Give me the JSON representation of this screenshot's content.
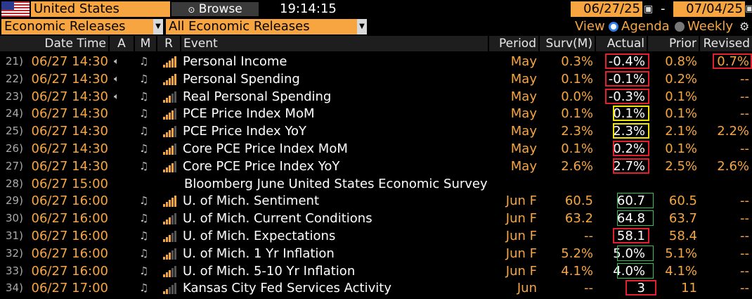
{
  "toolbar": {
    "country": "United States",
    "browse_label": "Browse",
    "time": "19:14:15",
    "date_from": "06/27/25",
    "date_to": "07/04/25",
    "date_sep": "-"
  },
  "filters": {
    "category": "Economic Releases",
    "subcategory": "All Economic Releases",
    "view_label": "View",
    "agenda_label": "Agenda",
    "weekly_label": "Weekly",
    "selected_view": "Agenda"
  },
  "colors": {
    "accent": "#f7a541",
    "red_box": "#e0202c",
    "yellow_box": "#f2e500",
    "green_box": "#38c15a"
  },
  "columns": {
    "datetime": "Date Time",
    "a": "A",
    "m": "M",
    "r": "R",
    "event": "Event",
    "period": "Period",
    "survey": "Surv(M)",
    "actual": "Actual",
    "prior": "Prior",
    "revised": "Revised"
  },
  "rows": [
    {
      "num": "21)",
      "dt": "06/27 14:30",
      "speaker": true,
      "bell": true,
      "bars": 5,
      "event": "Personal Income",
      "period": "May",
      "surv": "0.3%",
      "actual": "-0.4%",
      "box": "red",
      "prior": "0.8%",
      "revised": "0.7%",
      "revised_box": "red"
    },
    {
      "num": "22)",
      "dt": "06/27 14:30",
      "speaker": true,
      "bell": true,
      "bars": 5,
      "event": "Personal Spending",
      "period": "May",
      "surv": "0.1%",
      "actual": "-0.1%",
      "box": "red",
      "prior": "0.2%",
      "revised": "--",
      "revised_box": ""
    },
    {
      "num": "23)",
      "dt": "06/27 14:30",
      "speaker": true,
      "bell": true,
      "bars": 3,
      "event": "Real Personal Spending",
      "period": "May",
      "surv": "0.0%",
      "actual": "-0.3%",
      "box": "red",
      "prior": "0.1%",
      "revised": "--",
      "revised_box": ""
    },
    {
      "num": "24)",
      "dt": "06/27 14:30",
      "speaker": false,
      "bell": true,
      "bars": 4,
      "event": "PCE Price Index MoM",
      "period": "May",
      "surv": "0.1%",
      "actual": "0.1%",
      "box": "yellow",
      "prior": "0.1%",
      "revised": "--",
      "revised_box": ""
    },
    {
      "num": "25)",
      "dt": "06/27 14:30",
      "speaker": false,
      "bell": true,
      "bars": 4,
      "event": "PCE Price Index YoY",
      "period": "May",
      "surv": "2.3%",
      "actual": "2.3%",
      "box": "yellow",
      "prior": "2.1%",
      "revised": "2.2%",
      "revised_box": ""
    },
    {
      "num": "26)",
      "dt": "06/27 14:30",
      "speaker": false,
      "bell": true,
      "bars": 4,
      "event": "Core PCE Price Index MoM",
      "period": "May",
      "surv": "0.1%",
      "actual": "0.2%",
      "box": "red",
      "prior": "0.1%",
      "revised": "--",
      "revised_box": ""
    },
    {
      "num": "27)",
      "dt": "06/27 14:30",
      "speaker": false,
      "bell": true,
      "bars": 4,
      "event": "Core PCE Price Index YoY",
      "period": "May",
      "surv": "2.6%",
      "actual": "2.7%",
      "box": "red",
      "prior": "2.5%",
      "revised": "2.6%",
      "revised_box": ""
    },
    {
      "num": "28)",
      "dt": "06/27 15:00",
      "speaker": false,
      "bell": false,
      "bars": 0,
      "event": "Bloomberg June United States Economic Survey",
      "period": "",
      "surv": "",
      "actual": "",
      "box": "",
      "prior": "",
      "revised": "",
      "revised_box": "",
      "section": true
    },
    {
      "num": "29)",
      "dt": "06/27 16:00",
      "speaker": false,
      "bell": true,
      "bars": 5,
      "event": "U. of Mich. Sentiment",
      "period": "Jun F",
      "surv": "60.5",
      "actual": "60.7",
      "box": "green",
      "prior": "60.5",
      "revised": "--",
      "revised_box": ""
    },
    {
      "num": "30)",
      "dt": "06/27 16:00",
      "speaker": false,
      "bell": true,
      "bars": 3,
      "event": "U. of Mich. Current Conditions",
      "period": "Jun F",
      "surv": "63.2",
      "actual": "64.8",
      "box": "green",
      "prior": "63.7",
      "revised": "--",
      "revised_box": ""
    },
    {
      "num": "31)",
      "dt": "06/27 16:00",
      "speaker": false,
      "bell": true,
      "bars": 3,
      "event": "U. of Mich. Expectations",
      "period": "Jun F",
      "surv": "--",
      "actual": "58.1",
      "box": "red",
      "prior": "58.4",
      "revised": "--",
      "revised_box": ""
    },
    {
      "num": "32)",
      "dt": "06/27 16:00",
      "speaker": false,
      "bell": true,
      "bars": 3,
      "event": "U. of Mich. 1 Yr Inflation",
      "period": "Jun F",
      "surv": "5.2%",
      "actual": "5.0%",
      "box": "green",
      "prior": "5.1%",
      "revised": "--",
      "revised_box": ""
    },
    {
      "num": "33)",
      "dt": "06/27 16:00",
      "speaker": false,
      "bell": true,
      "bars": 3,
      "event": "U. of Mich. 5-10 Yr Inflation",
      "period": "Jun F",
      "surv": "4.1%",
      "actual": "4.0%",
      "box": "green",
      "prior": "4.1%",
      "revised": "--",
      "revised_box": ""
    },
    {
      "num": "34)",
      "dt": "06/27 17:00",
      "speaker": false,
      "bell": true,
      "bars": 2,
      "event": "Kansas City Fed Services Activity",
      "period": "Jun",
      "surv": "--",
      "actual": "3",
      "box": "red",
      "prior": "11",
      "revised": "--",
      "revised_box": ""
    }
  ]
}
